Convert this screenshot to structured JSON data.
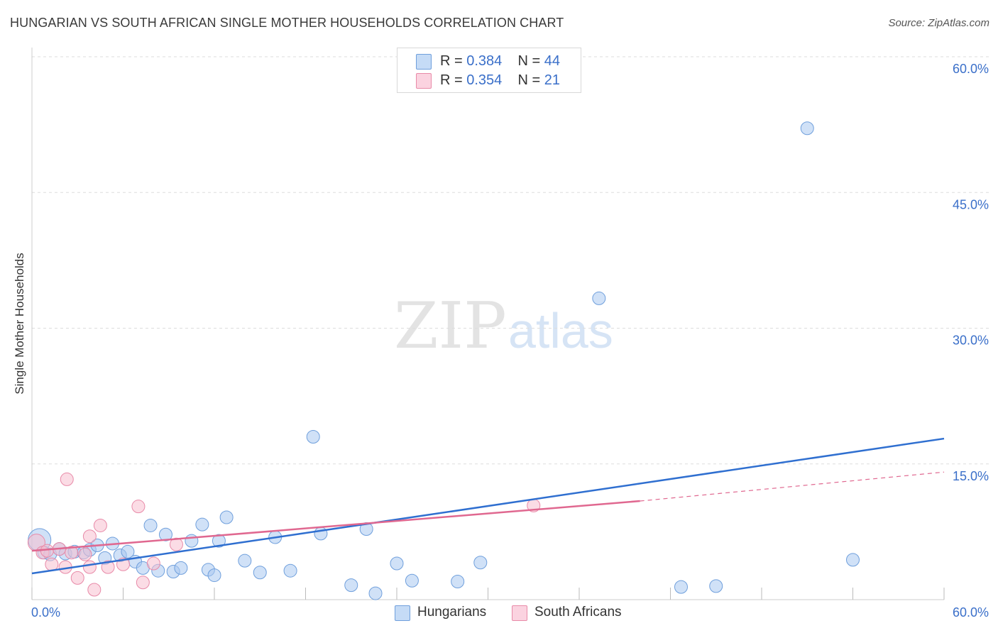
{
  "title": "HUNGARIAN VS SOUTH AFRICAN SINGLE MOTHER HOUSEHOLDS CORRELATION CHART",
  "source": "Source: ZipAtlas.com",
  "watermark": {
    "zip": "ZIP",
    "atlas": "atlas"
  },
  "colors": {
    "blue_fill": "#a9c8f0",
    "blue_stroke": "#6f9fdc",
    "blue_line": "#2f6fd0",
    "pink_fill": "#f7bfd0",
    "pink_stroke": "#e88aa8",
    "pink_line": "#e06890",
    "axis_text": "#3a6fc9",
    "grid": "#dddddd"
  },
  "legend": {
    "rows": [
      {
        "r_label": "R = ",
        "r_value": "0.384",
        "n_label": "N = ",
        "n_value": "44",
        "color": "blue"
      },
      {
        "r_label": "R = ",
        "r_value": "0.354",
        "n_label": "N = ",
        "n_value": "21",
        "color": "pink"
      }
    ]
  },
  "bottom_legend": [
    {
      "label": "Hungarians",
      "color": "blue"
    },
    {
      "label": "South Africans",
      "color": "pink"
    }
  ],
  "chart_data": {
    "type": "scatter",
    "title": "HUNGARIAN VS SOUTH AFRICAN SINGLE MOTHER HOUSEHOLDS CORRELATION CHART",
    "xlabel": "",
    "ylabel": "Single Mother Households",
    "xlim": [
      0,
      60
    ],
    "ylim": [
      0,
      60
    ],
    "x_tick_labels": [
      "0.0%",
      "60.0%"
    ],
    "y_tick_labels": [
      "15.0%",
      "30.0%",
      "45.0%",
      "60.0%"
    ],
    "y_ticks": [
      15,
      30,
      45,
      60
    ],
    "grid": true,
    "series": [
      {
        "name": "Hungarians",
        "color": "blue",
        "points": [
          [
            0.5,
            6.6,
            16
          ],
          [
            0.8,
            5.2,
            9
          ],
          [
            1.2,
            5.0,
            9
          ],
          [
            1.8,
            5.6,
            9
          ],
          [
            2.2,
            5.1,
            9
          ],
          [
            2.8,
            5.3,
            9
          ],
          [
            3.4,
            5.2,
            9
          ],
          [
            3.8,
            5.5,
            9
          ],
          [
            4.3,
            6.0,
            9
          ],
          [
            4.8,
            4.6,
            9
          ],
          [
            5.3,
            6.2,
            9
          ],
          [
            5.8,
            4.9,
            9
          ],
          [
            6.3,
            5.3,
            9
          ],
          [
            6.8,
            4.2,
            9
          ],
          [
            7.3,
            3.5,
            9
          ],
          [
            7.8,
            8.2,
            9
          ],
          [
            8.3,
            3.2,
            9
          ],
          [
            8.8,
            7.2,
            9
          ],
          [
            9.3,
            3.1,
            9
          ],
          [
            9.8,
            3.5,
            9
          ],
          [
            10.5,
            6.5,
            9
          ],
          [
            11.2,
            8.3,
            9
          ],
          [
            11.6,
            3.3,
            9
          ],
          [
            12.0,
            2.7,
            9
          ],
          [
            12.3,
            6.5,
            9
          ],
          [
            12.8,
            9.1,
            9
          ],
          [
            14.0,
            4.3,
            9
          ],
          [
            15.0,
            3.0,
            9
          ],
          [
            16.0,
            6.9,
            9
          ],
          [
            17.0,
            3.2,
            9
          ],
          [
            18.5,
            18.0,
            9
          ],
          [
            19.0,
            7.3,
            9
          ],
          [
            21.0,
            1.6,
            9
          ],
          [
            22.0,
            7.8,
            9
          ],
          [
            22.6,
            0.7,
            9
          ],
          [
            24.0,
            4.0,
            9
          ],
          [
            25.0,
            2.1,
            9
          ],
          [
            28.0,
            2.0,
            9
          ],
          [
            29.5,
            4.1,
            9
          ],
          [
            37.3,
            33.3,
            9
          ],
          [
            42.7,
            1.4,
            9
          ],
          [
            45.0,
            1.5,
            9
          ],
          [
            51.0,
            52.1,
            9
          ],
          [
            54.0,
            4.4,
            9
          ]
        ]
      },
      {
        "name": "South Africans",
        "color": "pink",
        "points": [
          [
            0.3,
            6.3,
            12
          ],
          [
            0.7,
            5.2,
            9
          ],
          [
            1.0,
            5.4,
            9
          ],
          [
            1.3,
            3.9,
            9
          ],
          [
            1.8,
            5.6,
            9
          ],
          [
            2.2,
            3.6,
            9
          ],
          [
            2.3,
            13.3,
            9
          ],
          [
            2.6,
            5.2,
            9
          ],
          [
            3.0,
            2.4,
            9
          ],
          [
            3.5,
            5.0,
            9
          ],
          [
            3.8,
            3.6,
            9
          ],
          [
            3.8,
            7.0,
            9
          ],
          [
            4.1,
            1.1,
            9
          ],
          [
            4.5,
            8.2,
            9
          ],
          [
            5.0,
            3.6,
            9
          ],
          [
            6.0,
            3.9,
            9
          ],
          [
            7.0,
            10.3,
            9
          ],
          [
            7.3,
            1.9,
            9
          ],
          [
            8.0,
            4.0,
            9
          ],
          [
            9.5,
            6.1,
            9
          ],
          [
            33.0,
            10.4,
            9
          ]
        ]
      }
    ],
    "trendlines": [
      {
        "series": "Hungarians",
        "x": [
          0,
          60
        ],
        "y": [
          2.9,
          17.8
        ],
        "style": "solid"
      },
      {
        "series": "South Africans",
        "x": [
          0,
          40
        ],
        "y": [
          5.4,
          10.9
        ],
        "style": "solid"
      },
      {
        "series": "South Africans",
        "x": [
          40,
          60
        ],
        "y": [
          10.9,
          14.1
        ],
        "style": "dashed"
      }
    ]
  }
}
